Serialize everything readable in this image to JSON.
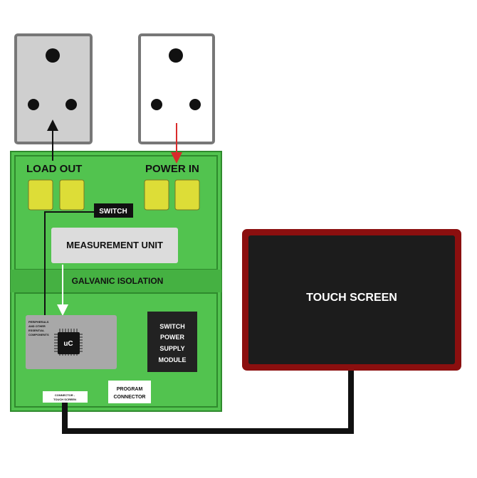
{
  "colors": {
    "board_green": "#52c34f",
    "board_border": "#2f8a2d",
    "socket_grey": "#cfcfcf",
    "socket_white": "#ffffff",
    "terminal_yellow": "#dddd37",
    "screen_border": "#8b0f0f",
    "screen_fill": "#1c1c1c",
    "power_wire": "#d92b2b"
  },
  "labels": {
    "load_out": "LOAD OUT",
    "power_in": "POWER IN",
    "switch": "SWITCH",
    "measurement_unit": "MEASUREMENT UNIT",
    "galvanic_isolation": "GALVANIC ISOLATION",
    "peripherals_line1": "PERIPHERALS",
    "peripherals_line2": "AND OTHER",
    "peripherals_line3": "ESSENTIAL",
    "peripherals_line4": "COMPONENTS",
    "uc": "uC",
    "smps_line1": "SWITCH",
    "smps_line2": "POWER",
    "smps_line3": "SUPPLY",
    "smps_line4": "MODULE",
    "program_line1": "PROGRAM",
    "program_line2": "CONNECTOR",
    "connector_line1": "CONNECTOR -",
    "connector_line2": "TOUCH SCREEN",
    "touch_screen": "TOUCH SCREEN"
  }
}
